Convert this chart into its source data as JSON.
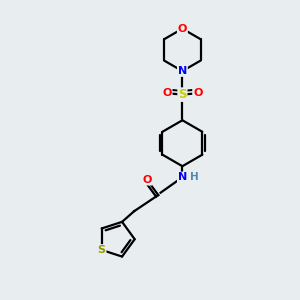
{
  "background_color": "#e8eef0",
  "bond_color": "#000000",
  "atom_colors": {
    "O": "#ff0000",
    "N": "#0000ff",
    "S_sulfonyl": "#cccc00",
    "S_thio": "#999900",
    "H": "#5588aa",
    "C": "#000000"
  },
  "line_width": 1.6,
  "figsize": [
    3.0,
    3.0
  ],
  "dpi": 100
}
